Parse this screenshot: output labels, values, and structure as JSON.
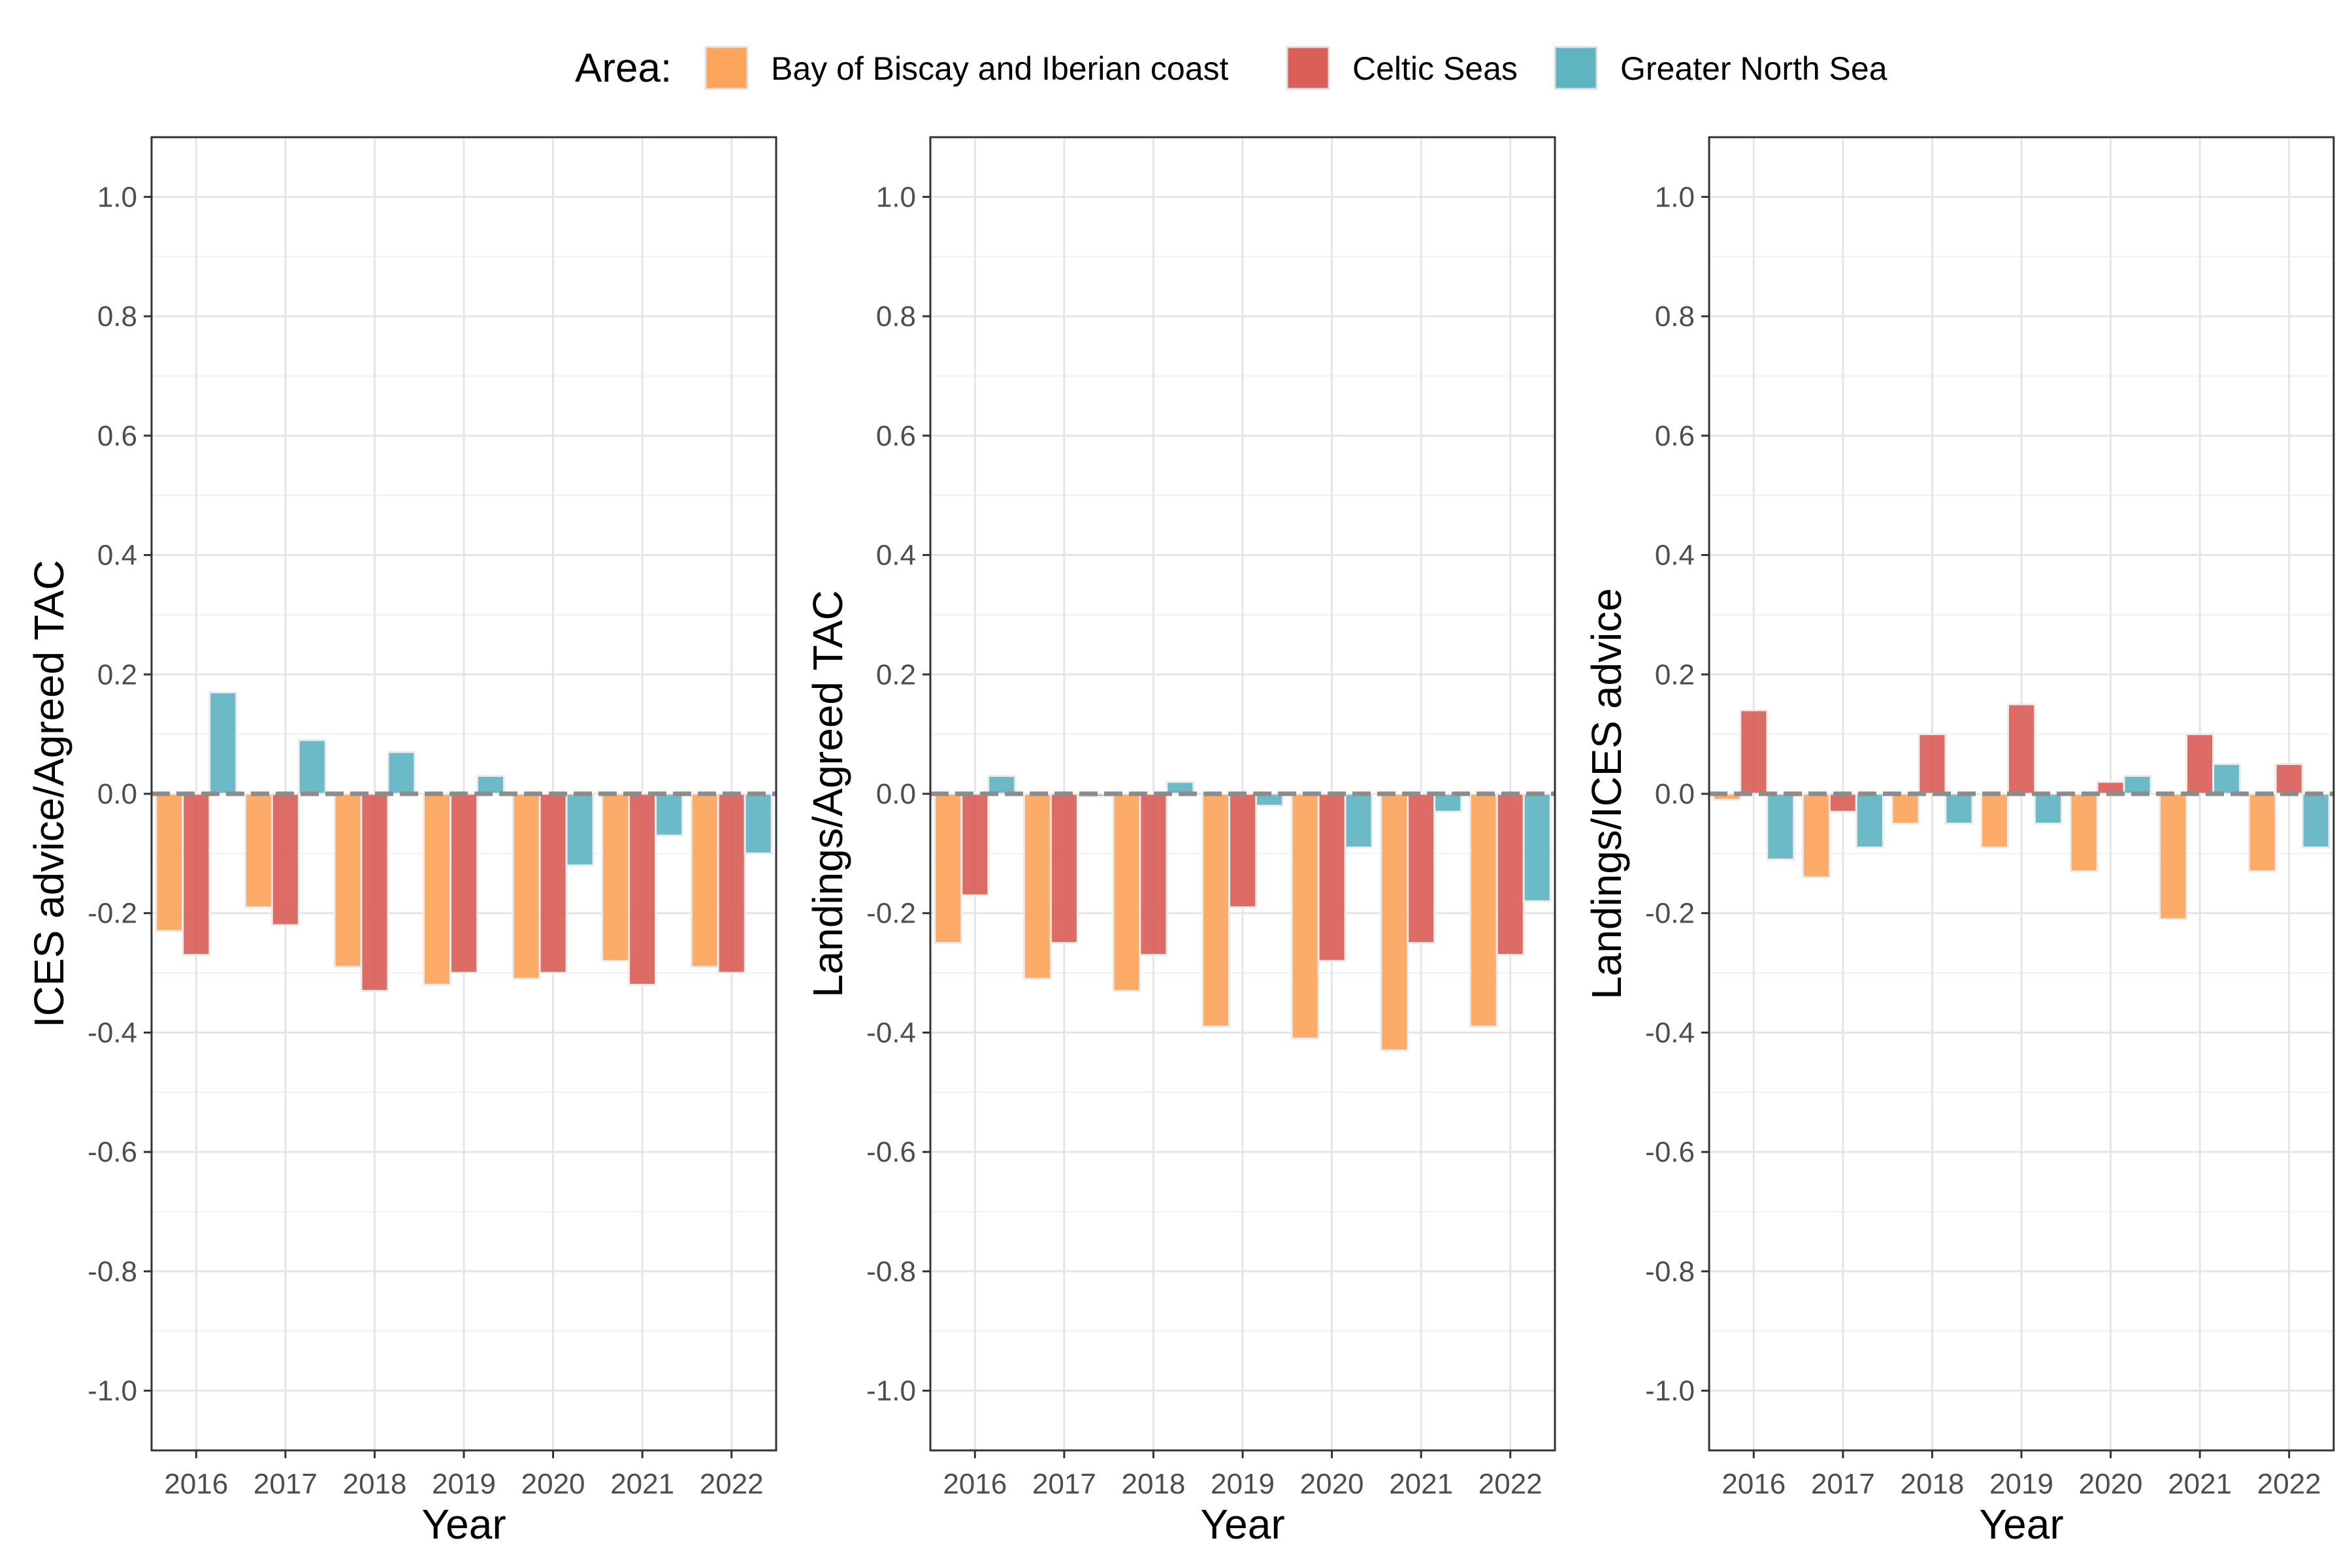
{
  "legend": {
    "title": "Area:",
    "position": "top"
  },
  "colors": {
    "Bay of Biscay and Iberian coast": "#FDA45C",
    "Celtic Seas": "#D95F58",
    "Greater North Sea": "#5FB4C2",
    "reference_line": "#8c8c8c"
  },
  "chart_data": [
    {
      "type": "bar",
      "ylabel": "ICES advice/Agreed TAC",
      "xlabel": "Year",
      "ylim": [
        -1.1,
        1.1
      ],
      "yticks": [
        "1.0",
        "0.8",
        "0.6",
        "0.4",
        "0.2",
        "0.0",
        "-0.2",
        "-0.4",
        "-0.6",
        "-0.8",
        "-1.0"
      ],
      "grid": true,
      "categories": [
        "2016",
        "2017",
        "2018",
        "2019",
        "2020",
        "2021",
        "2022"
      ],
      "series": [
        {
          "name": "Bay of Biscay and Iberian coast",
          "values": [
            -0.23,
            -0.19,
            -0.29,
            -0.32,
            -0.31,
            -0.28,
            -0.29
          ]
        },
        {
          "name": "Celtic Seas",
          "values": [
            -0.27,
            -0.22,
            -0.33,
            -0.3,
            -0.3,
            -0.32,
            -0.3
          ]
        },
        {
          "name": "Greater North Sea",
          "values": [
            0.17,
            0.09,
            0.07,
            0.03,
            -0.12,
            -0.07,
            -0.1
          ]
        }
      ]
    },
    {
      "type": "bar",
      "ylabel": "Landings/Agreed TAC",
      "xlabel": "Year",
      "ylim": [
        -1.1,
        1.1
      ],
      "yticks": [
        "1.0",
        "0.8",
        "0.6",
        "0.4",
        "0.2",
        "0.0",
        "-0.2",
        "-0.4",
        "-0.6",
        "-0.8",
        "-1.0"
      ],
      "grid": true,
      "categories": [
        "2016",
        "2017",
        "2018",
        "2019",
        "2020",
        "2021",
        "2022"
      ],
      "series": [
        {
          "name": "Bay of Biscay and Iberian coast",
          "values": [
            -0.25,
            -0.31,
            -0.33,
            -0.39,
            -0.41,
            -0.43,
            -0.39
          ]
        },
        {
          "name": "Celtic Seas",
          "values": [
            -0.17,
            -0.25,
            -0.27,
            -0.19,
            -0.28,
            -0.25,
            -0.27
          ]
        },
        {
          "name": "Greater North Sea",
          "values": [
            0.03,
            -0.005,
            0.02,
            -0.02,
            -0.09,
            -0.03,
            -0.18
          ]
        }
      ]
    },
    {
      "type": "bar",
      "ylabel": "Landings/ICES advice",
      "xlabel": "Year",
      "ylim": [
        -1.1,
        1.1
      ],
      "yticks": [
        "1.0",
        "0.8",
        "0.6",
        "0.4",
        "0.2",
        "0.0",
        "-0.2",
        "-0.4",
        "-0.6",
        "-0.8",
        "-1.0"
      ],
      "grid": true,
      "categories": [
        "2016",
        "2017",
        "2018",
        "2019",
        "2020",
        "2021",
        "2022"
      ],
      "series": [
        {
          "name": "Bay of Biscay and Iberian coast",
          "values": [
            -0.01,
            -0.14,
            -0.05,
            -0.09,
            -0.13,
            -0.21,
            -0.13
          ]
        },
        {
          "name": "Celtic Seas",
          "values": [
            0.14,
            -0.03,
            0.1,
            0.15,
            0.02,
            0.1,
            0.05
          ]
        },
        {
          "name": "Greater North Sea",
          "values": [
            -0.11,
            -0.09,
            -0.05,
            -0.05,
            0.03,
            0.05,
            -0.09
          ]
        }
      ]
    }
  ]
}
